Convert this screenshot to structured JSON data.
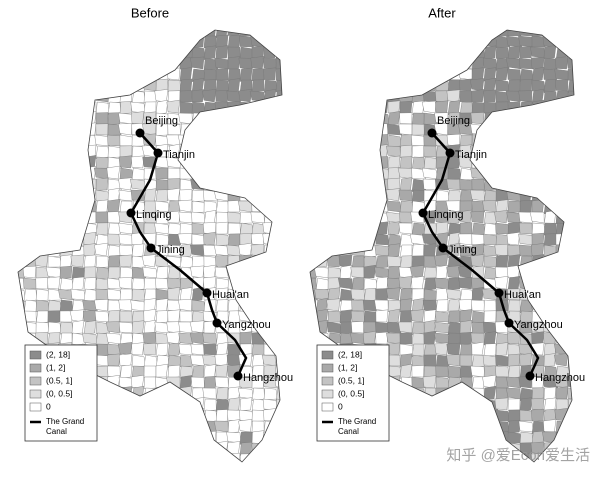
{
  "maps": [
    {
      "title": "Before"
    },
    {
      "title": "After"
    }
  ],
  "cities": [
    "Beijing",
    "Tianjin",
    "Linqing",
    "Jining",
    "Huai'an",
    "Yangzhou",
    "Hangzhou"
  ],
  "legend": {
    "items": [
      {
        "label": "(2, 18]",
        "color": "#8c8c8c"
      },
      {
        "label": "(1, 2]",
        "color": "#a9a9a9"
      },
      {
        "label": "(0.5, 1]",
        "color": "#c3c3c3"
      },
      {
        "label": "(0, 0.5]",
        "color": "#dedede"
      },
      {
        "label": "0",
        "color": "#ffffff"
      }
    ],
    "canal": "The Grand Canal"
  },
  "watermark": "知乎 @爱Econ爱生活"
}
